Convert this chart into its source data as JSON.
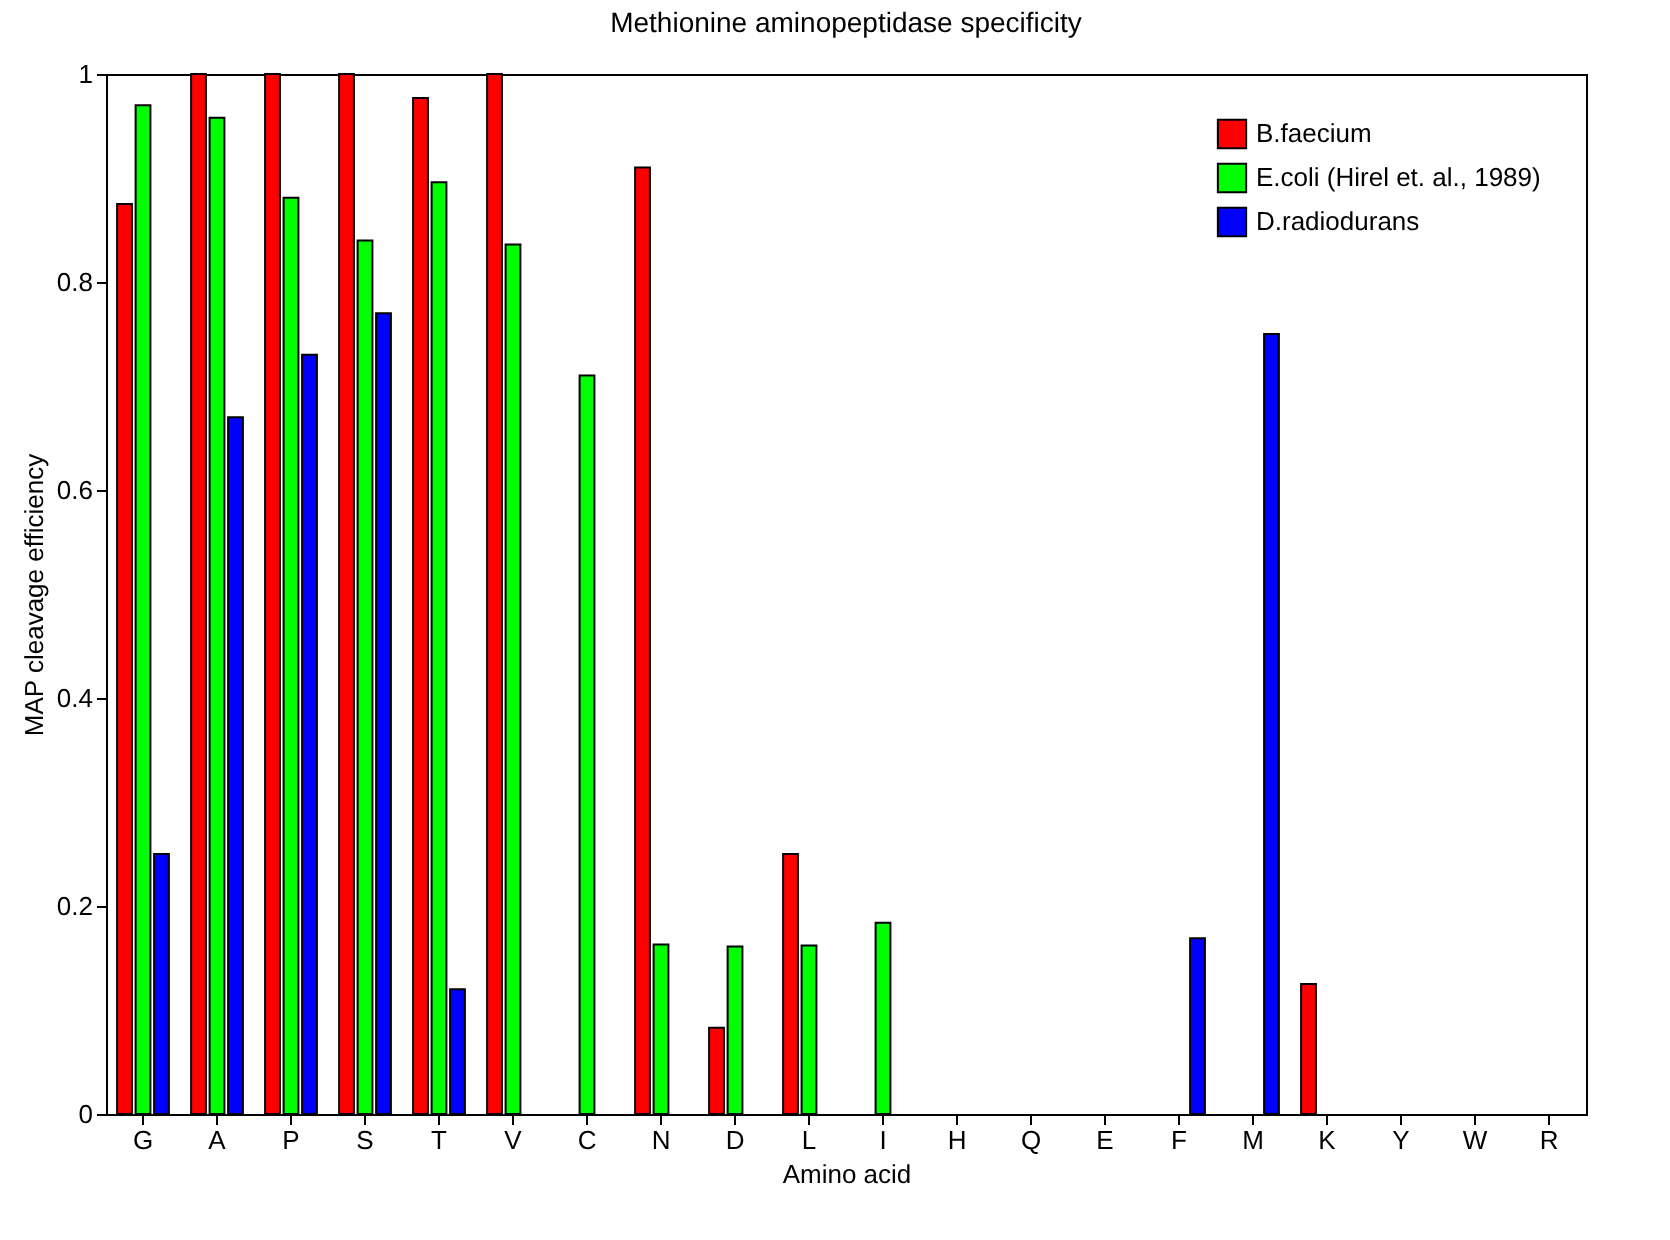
{
  "chart_data": {
    "type": "bar",
    "title": "Methionine aminopeptidase specificity",
    "xlabel": "Amino acid",
    "ylabel": "MAP cleavage efficiency",
    "categories": [
      "G",
      "A",
      "P",
      "S",
      "T",
      "V",
      "C",
      "N",
      "D",
      "L",
      "I",
      "H",
      "Q",
      "E",
      "F",
      "M",
      "K",
      "Y",
      "W",
      "R"
    ],
    "series": [
      {
        "name": "B.faecium",
        "color": "#ff0000",
        "values": [
          0.875,
          1,
          1,
          1,
          0.977,
          1,
          null,
          0.91,
          0.083,
          0.25,
          null,
          null,
          null,
          null,
          null,
          null,
          0.125,
          null,
          null,
          null
        ]
      },
      {
        "name": "E.coli (Hirel et. al., 1989)",
        "color": "#00ff00",
        "values": [
          0.97,
          0.958,
          0.881,
          0.84,
          0.896,
          0.836,
          0.71,
          0.163,
          0.161,
          0.162,
          0.184,
          null,
          null,
          null,
          null,
          null,
          null,
          null,
          null,
          null
        ]
      },
      {
        "name": "D.radiodurans",
        "color": "#0000ff",
        "values": [
          0.25,
          0.67,
          0.73,
          0.77,
          0.12,
          null,
          null,
          null,
          null,
          null,
          null,
          null,
          null,
          null,
          0.169,
          0.75,
          null,
          null,
          null,
          null
        ]
      }
    ],
    "ylim": [
      0,
      1
    ],
    "yticks": [
      0,
      0.2,
      0.4,
      0.6,
      0.8,
      1
    ],
    "grid": false,
    "legend": "top right"
  }
}
